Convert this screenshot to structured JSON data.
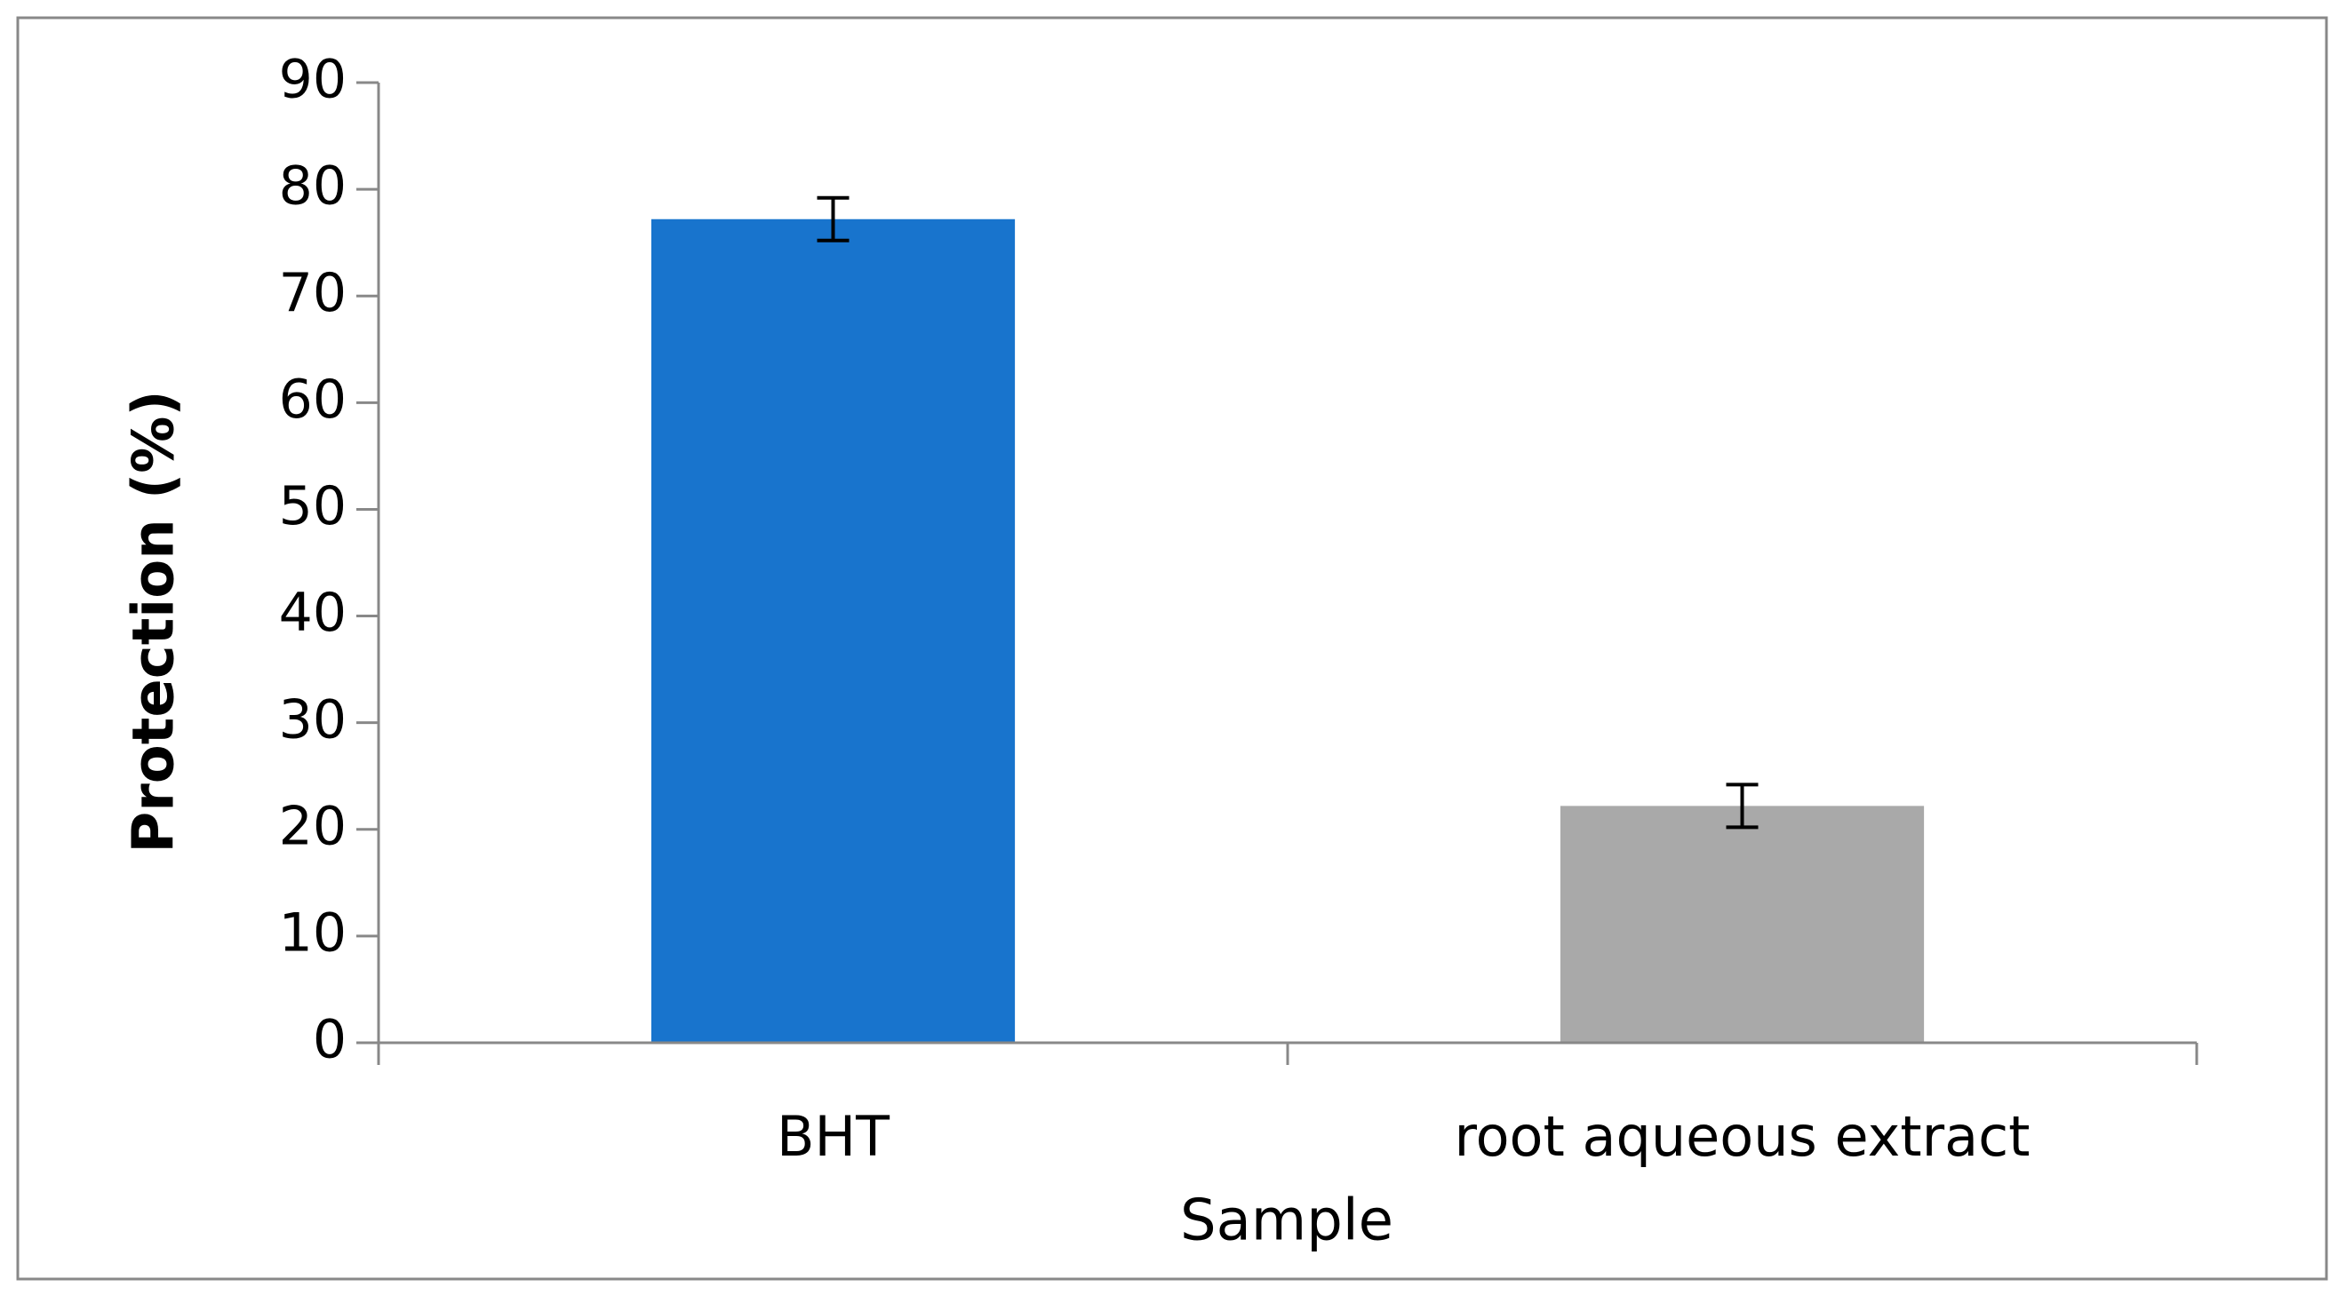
{
  "chart_data": {
    "type": "bar",
    "categories": [
      "BHT",
      "root aqueous extract"
    ],
    "values": [
      77.2,
      22.2
    ],
    "errors": [
      2,
      2
    ],
    "colors": [
      "#1874cd",
      "#a9a9a9"
    ],
    "xlabel": "Sample",
    "ylabel": "Protection (%)",
    "ylim": [
      0,
      90
    ],
    "yticks": [
      0,
      10,
      20,
      30,
      40,
      50,
      60,
      70,
      80,
      90
    ]
  }
}
